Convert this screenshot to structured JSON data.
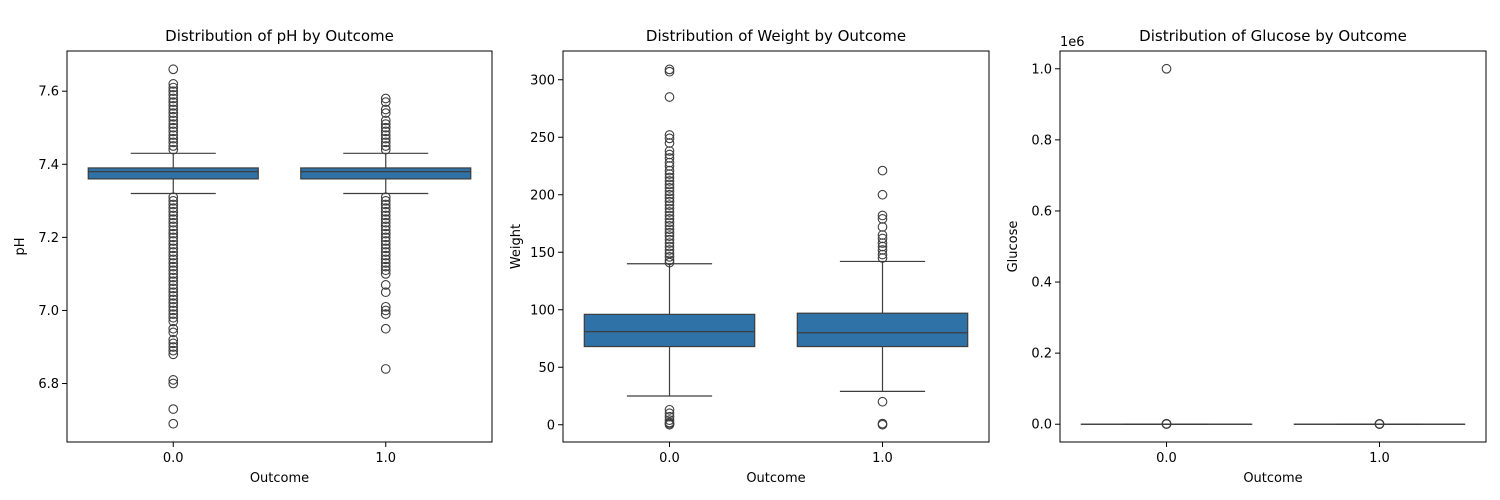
{
  "chart_data": [
    {
      "type": "box",
      "title": "Distribution of pH by Outcome",
      "xlabel": "Outcome",
      "ylabel": "pH",
      "categories": [
        "0.0",
        "1.0"
      ],
      "ylim": [
        6.64,
        7.71
      ],
      "yticks": [
        6.8,
        7.0,
        7.2,
        7.4,
        7.6
      ],
      "ytick_labels": [
        "6.8",
        "7.0",
        "7.2",
        "7.4",
        "7.6"
      ],
      "box_color": "#2f72a8",
      "boxes": [
        {
          "category": "0.0",
          "q1": 7.36,
          "median": 7.38,
          "q3": 7.39,
          "whisker_low": 7.32,
          "whisker_high": 7.43,
          "outliers": [
            7.66,
            7.62,
            7.61,
            7.6,
            7.59,
            7.58,
            7.57,
            7.56,
            7.55,
            7.54,
            7.53,
            7.52,
            7.51,
            7.5,
            7.49,
            7.48,
            7.47,
            7.46,
            7.45,
            7.44,
            7.31,
            7.3,
            7.29,
            7.28,
            7.27,
            7.26,
            7.25,
            7.24,
            7.23,
            7.22,
            7.21,
            7.2,
            7.19,
            7.18,
            7.17,
            7.16,
            7.15,
            7.14,
            7.13,
            7.12,
            7.11,
            7.1,
            7.09,
            7.08,
            7.07,
            7.06,
            7.05,
            7.04,
            7.03,
            7.02,
            7.01,
            7.0,
            6.99,
            6.98,
            6.97,
            6.95,
            6.94,
            6.92,
            6.91,
            6.9,
            6.89,
            6.88,
            6.81,
            6.8,
            6.73,
            6.69
          ]
        },
        {
          "category": "1.0",
          "q1": 7.36,
          "median": 7.38,
          "q3": 7.39,
          "whisker_low": 7.32,
          "whisker_high": 7.43,
          "outliers": [
            7.58,
            7.57,
            7.55,
            7.54,
            7.52,
            7.51,
            7.5,
            7.49,
            7.48,
            7.47,
            7.46,
            7.45,
            7.44,
            7.31,
            7.3,
            7.29,
            7.28,
            7.27,
            7.26,
            7.25,
            7.24,
            7.23,
            7.22,
            7.21,
            7.2,
            7.19,
            7.18,
            7.17,
            7.16,
            7.15,
            7.14,
            7.13,
            7.12,
            7.11,
            7.1,
            7.07,
            7.05,
            7.01,
            7.0,
            6.99,
            6.95,
            6.84
          ]
        }
      ]
    },
    {
      "type": "box",
      "title": "Distribution of Weight by Outcome",
      "xlabel": "Outcome",
      "ylabel": "Weight",
      "categories": [
        "0.0",
        "1.0"
      ],
      "ylim": [
        -15,
        325
      ],
      "yticks": [
        0,
        50,
        100,
        150,
        200,
        250,
        300
      ],
      "ytick_labels": [
        "0",
        "50",
        "100",
        "150",
        "200",
        "250",
        "300"
      ],
      "box_color": "#2f72a8",
      "boxes": [
        {
          "category": "0.0",
          "q1": 68,
          "median": 81,
          "q3": 96,
          "whisker_low": 25,
          "whisker_high": 140,
          "outliers": [
            309,
            307,
            285,
            252,
            249,
            245,
            238,
            235,
            232,
            228,
            225,
            221,
            218,
            215,
            212,
            209,
            206,
            203,
            200,
            197,
            194,
            191,
            188,
            185,
            182,
            179,
            176,
            173,
            170,
            167,
            164,
            161,
            158,
            155,
            152,
            149,
            146,
            143,
            141,
            13,
            10,
            7,
            4,
            2,
            1,
            0
          ]
        },
        {
          "category": "1.0",
          "q1": 68,
          "median": 80,
          "q3": 97,
          "whisker_low": 29,
          "whisker_high": 142,
          "outliers": [
            221,
            200,
            182,
            179,
            172,
            165,
            162,
            158,
            155,
            152,
            148,
            145,
            20,
            1,
            0
          ]
        }
      ]
    },
    {
      "type": "box",
      "title": "Distribution of Glucose by Outcome",
      "xlabel": "Outcome",
      "ylabel": "Glucose",
      "categories": [
        "0.0",
        "1.0"
      ],
      "ylim": [
        -0.05,
        1.05
      ],
      "yticks": [
        0.0,
        0.2,
        0.4,
        0.6,
        0.8,
        1.0
      ],
      "ytick_labels": [
        "0.0",
        "0.2",
        "0.4",
        "0.6",
        "0.8",
        "1.0"
      ],
      "y_offset_text": "1e6",
      "box_color": "#2f72a8",
      "boxes": [
        {
          "category": "0.0",
          "q1": 0,
          "median": 0,
          "q3": 0,
          "whisker_low": 0,
          "whisker_high": 0,
          "outliers": [
            1.0,
            0.0015,
            0.0008,
            0.0004
          ]
        },
        {
          "category": "1.0",
          "q1": 0,
          "median": 0,
          "q3": 0,
          "whisker_low": 0,
          "whisker_high": 0,
          "outliers": [
            0.0012,
            0.0006,
            0.0003
          ]
        }
      ]
    }
  ]
}
